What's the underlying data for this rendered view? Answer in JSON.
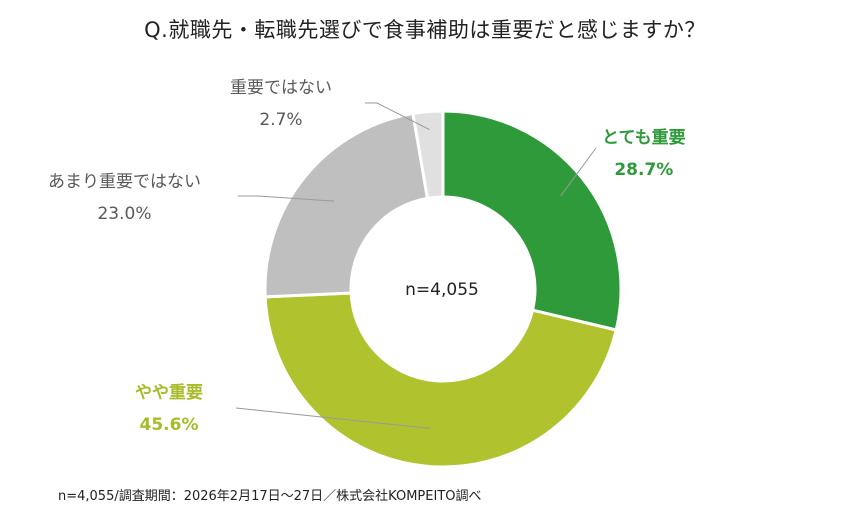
{
  "chart_data": {
    "type": "pie",
    "title": "Q.就職先・転職先選びで食事補助は重要だと感じますか？",
    "center_text": "n=4,055",
    "slices": [
      {
        "name": "とても重要",
        "value": 28.7,
        "label": "28.7%",
        "color": "#2e9a3a",
        "label_color": "#2e9a3a"
      },
      {
        "name": "やや重要",
        "value": 45.6,
        "label": "45.6%",
        "color": "#b0c22e",
        "label_color": "#a9bb2a"
      },
      {
        "name": "あまり重要ではない",
        "value": 23.0,
        "label": "23.0%",
        "color": "#bfbfbf",
        "label_color": "#595959"
      },
      {
        "name": "重要ではない",
        "value": 2.7,
        "label": "2.7%",
        "color": "#e0e0e0",
        "label_color": "#595959"
      }
    ],
    "start": "12 o'clock",
    "direction": "clockwise"
  },
  "footnote": "n=4,055/調査期間：2026年2月17日〜27日／株式会社KOMPEITO調べ"
}
